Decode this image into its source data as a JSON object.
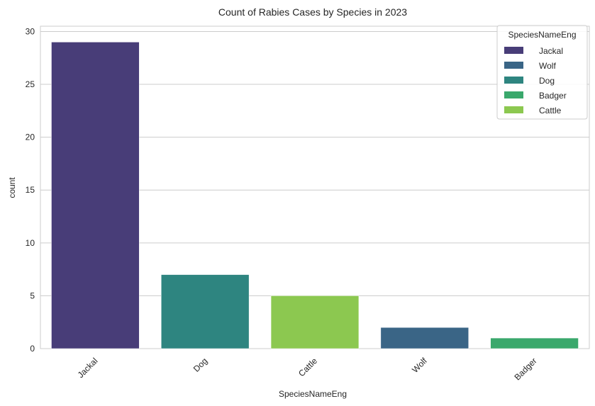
{
  "chart_data": {
    "type": "bar",
    "title": "Count of Rabies Cases by Species in 2023",
    "xlabel": "SpeciesNameEng",
    "ylabel": "count",
    "ylim": [
      0,
      30.5
    ],
    "yticks": [
      0,
      5,
      10,
      15,
      20,
      25,
      30
    ],
    "grid": "y",
    "categories": [
      "Jackal",
      "Dog",
      "Cattle",
      "Wolf",
      "Badger"
    ],
    "values": [
      29,
      7,
      5,
      2,
      1
    ],
    "bar_colors": [
      "#483d78",
      "#2e8580",
      "#8cc850",
      "#3a6586",
      "#3aa86c"
    ],
    "legend": {
      "title": "SpeciesNameEng",
      "placement": "top-right",
      "entries": [
        {
          "label": "Jackal",
          "color": "#483d78"
        },
        {
          "label": "Wolf",
          "color": "#3a6586"
        },
        {
          "label": "Dog",
          "color": "#2e8580"
        },
        {
          "label": "Badger",
          "color": "#3aa86c"
        },
        {
          "label": "Cattle",
          "color": "#8cc850"
        }
      ]
    }
  }
}
